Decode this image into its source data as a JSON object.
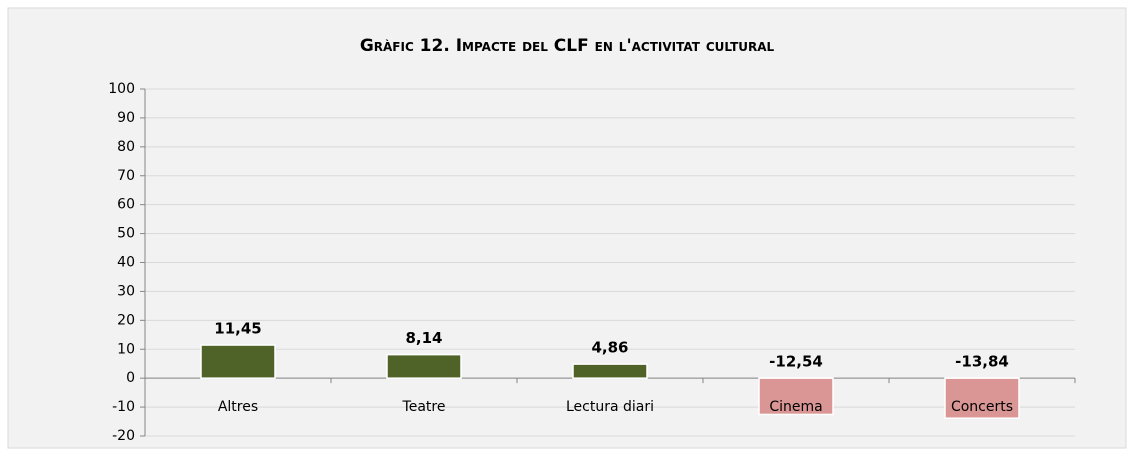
{
  "chart_data": {
    "type": "bar",
    "title": "Gràfic 12. Impacte del CLF en l'activitat cultural",
    "categories": [
      "Altres",
      "Teatre",
      "Lectura diari",
      "Cinema",
      "Concerts"
    ],
    "values": [
      11.45,
      8.14,
      4.86,
      -12.54,
      -13.84
    ],
    "value_labels": [
      "11,45",
      "8,14",
      "4,86",
      "-12,54",
      "-13,84"
    ],
    "colors": [
      "#4f6228",
      "#4f6228",
      "#4f6228",
      "#d99694",
      "#d99694"
    ],
    "ylim": [
      -20,
      100
    ],
    "yticks": [
      -20,
      -10,
      0,
      10,
      20,
      30,
      40,
      50,
      60,
      70,
      80,
      90,
      100
    ],
    "grid": true
  }
}
